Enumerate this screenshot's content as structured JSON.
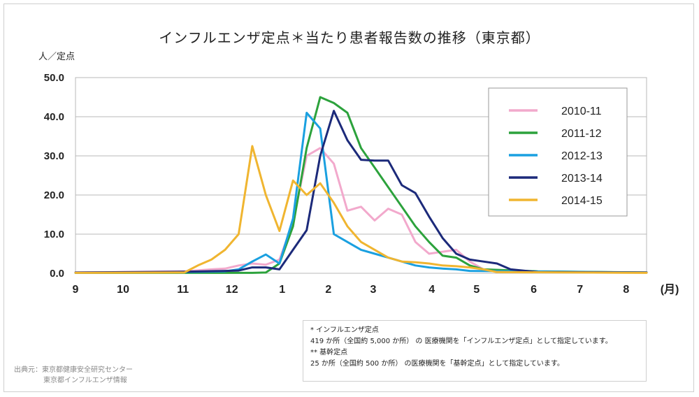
{
  "title": "インフルエンザ定点＊当たり患者報告数の推移（東京都）",
  "unit_label": "人／定点",
  "notes": [
    "* インフルエンザ定点",
    "419 か所（全国約 5,000 か所） の 医療機関を「インフルエンザ定点」として指定しています。",
    "** 基幹定点",
    "25 か所（全国約 500 か所） の医療機関を「基幹定点」として指定しています。"
  ],
  "source": [
    "出典元：東京都健康安全研究センター",
    "東京都インフルエンザ情報"
  ],
  "chart_data": {
    "type": "line",
    "title": "インフルエンザ定点＊当たり患者報告数の推移（東京都）",
    "ylabel": "人／定点",
    "ylim": [
      0,
      50
    ],
    "yticks": [
      "0.0",
      "10.0",
      "20.0",
      "30.0",
      "40.0",
      "50.0"
    ],
    "xunit": "(月)",
    "xlim": [
      0,
      42
    ],
    "month_ticks": [
      {
        "label": "9",
        "x": 0
      },
      {
        "label": "10",
        "x": 3.5
      },
      {
        "label": "11",
        "x": 7.9
      },
      {
        "label": "12",
        "x": 11.5
      },
      {
        "label": "1",
        "x": 15.2
      },
      {
        "label": "2",
        "x": 18.6
      },
      {
        "label": "3",
        "x": 21.9
      },
      {
        "label": "4",
        "x": 26.2
      },
      {
        "label": "5",
        "x": 29.5
      },
      {
        "label": "6",
        "x": 33.7
      },
      {
        "label": "7",
        "x": 37.1
      },
      {
        "label": "8",
        "x": 40.5
      },
      {
        "label": "(月)",
        "x": 43.7
      }
    ],
    "grid": true,
    "legend_position": "top-right",
    "series": [
      {
        "name": "2010-11",
        "color": "#f2a9cc",
        "points": [
          [
            0,
            0.2
          ],
          [
            8,
            0.5
          ],
          [
            10,
            1.0
          ],
          [
            11,
            1.2
          ],
          [
            12,
            2.0
          ],
          [
            13,
            2.5
          ],
          [
            14,
            2.2
          ],
          [
            15,
            3.5
          ],
          [
            16,
            13.0
          ],
          [
            17,
            30.0
          ],
          [
            18,
            32.0
          ],
          [
            19,
            28.0
          ],
          [
            20,
            16.0
          ],
          [
            21,
            17.0
          ],
          [
            22,
            13.5
          ],
          [
            23,
            16.5
          ],
          [
            24,
            15.0
          ],
          [
            25,
            8.0
          ],
          [
            26,
            5.0
          ],
          [
            27,
            5.5
          ],
          [
            28,
            6.0
          ],
          [
            29,
            3.0
          ],
          [
            30,
            1.0
          ],
          [
            34,
            0.4
          ],
          [
            42,
            0.2
          ]
        ]
      },
      {
        "name": "2011-12",
        "color": "#2ca23c",
        "points": [
          [
            0,
            0.1
          ],
          [
            10,
            0.1
          ],
          [
            13,
            0.1
          ],
          [
            14,
            0.2
          ],
          [
            15,
            2.5
          ],
          [
            16,
            12.0
          ],
          [
            17,
            32.0
          ],
          [
            18,
            45.0
          ],
          [
            19,
            43.5
          ],
          [
            20,
            41.0
          ],
          [
            21,
            32.0
          ],
          [
            22,
            27.0
          ],
          [
            23,
            22.0
          ],
          [
            24,
            17.0
          ],
          [
            25,
            12.0
          ],
          [
            26,
            8.0
          ],
          [
            27,
            4.5
          ],
          [
            28,
            4.0
          ],
          [
            29,
            2.0
          ],
          [
            30,
            1.0
          ],
          [
            34,
            0.5
          ],
          [
            42,
            0.2
          ]
        ]
      },
      {
        "name": "2012-13",
        "color": "#1aa0e0",
        "points": [
          [
            0,
            0.1
          ],
          [
            8,
            0.3
          ],
          [
            11,
            0.5
          ],
          [
            12,
            1.0
          ],
          [
            13,
            3.0
          ],
          [
            14,
            4.8
          ],
          [
            15,
            2.5
          ],
          [
            16,
            14.0
          ],
          [
            17,
            41.0
          ],
          [
            18,
            37.0
          ],
          [
            19,
            10.0
          ],
          [
            20,
            8.0
          ],
          [
            21,
            6.0
          ],
          [
            22,
            5.0
          ],
          [
            23,
            4.0
          ],
          [
            24,
            3.0
          ],
          [
            25,
            2.0
          ],
          [
            26,
            1.5
          ],
          [
            27,
            1.2
          ],
          [
            28,
            1.0
          ],
          [
            29,
            0.6
          ],
          [
            42,
            0.2
          ]
        ]
      },
      {
        "name": "2013-14",
        "color": "#1c2a7a",
        "points": [
          [
            0,
            0.2
          ],
          [
            8,
            0.4
          ],
          [
            11,
            0.6
          ],
          [
            12,
            0.7
          ],
          [
            13,
            1.5
          ],
          [
            14,
            1.5
          ],
          [
            15,
            1.0
          ],
          [
            16,
            6.0
          ],
          [
            17,
            11.0
          ],
          [
            18,
            30.0
          ],
          [
            19,
            41.5
          ],
          [
            20,
            34.0
          ],
          [
            21,
            29.0
          ],
          [
            22,
            28.8
          ],
          [
            23,
            28.8
          ],
          [
            24,
            22.5
          ],
          [
            25,
            20.5
          ],
          [
            26,
            14.5
          ],
          [
            27,
            9.0
          ],
          [
            28,
            5.0
          ],
          [
            29,
            3.5
          ],
          [
            30,
            3.0
          ],
          [
            31,
            2.5
          ],
          [
            32,
            1.0
          ],
          [
            34,
            0.3
          ],
          [
            42,
            0.2
          ]
        ]
      },
      {
        "name": "2014-15",
        "color": "#f0b530",
        "points": [
          [
            0,
            0.1
          ],
          [
            8,
            0.2
          ],
          [
            9,
            2.0
          ],
          [
            10,
            3.5
          ],
          [
            11,
            6.0
          ],
          [
            12,
            10.0
          ],
          [
            13,
            32.5
          ],
          [
            14,
            20.0
          ],
          [
            15,
            10.8
          ],
          [
            16,
            23.7
          ],
          [
            17,
            20.0
          ],
          [
            18,
            23.0
          ],
          [
            19,
            18.0
          ],
          [
            20,
            12.0
          ],
          [
            21,
            8.0
          ],
          [
            22,
            6.0
          ],
          [
            23,
            4.0
          ],
          [
            24,
            3.0
          ],
          [
            25,
            2.8
          ],
          [
            26,
            2.5
          ],
          [
            27,
            2.0
          ],
          [
            28,
            1.8
          ],
          [
            29,
            1.5
          ],
          [
            30,
            1.0
          ],
          [
            31,
            0.3
          ],
          [
            42,
            0.1
          ]
        ]
      }
    ]
  }
}
